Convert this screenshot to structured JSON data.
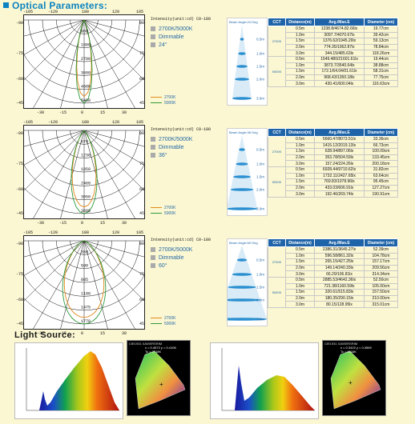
{
  "header": {
    "title": "Optical Parameters:"
  },
  "polar_axes": {
    "top": [
      "-105",
      "-120",
      "180",
      "120",
      "105"
    ],
    "side_left": [
      "-90",
      "-75",
      "-60",
      "-45"
    ],
    "side_right": [
      "90",
      "75",
      "60",
      "45"
    ],
    "bottom": [
      "-30",
      "-15",
      "0",
      "15",
      "30"
    ]
  },
  "charts": [
    {
      "intensity_label": "Intensity(unit:cd) C0-180",
      "specs": [
        "2700K/5000K",
        "Dimmable",
        "24°"
      ],
      "legend": [
        "2700K",
        "5000K"
      ],
      "radial_values": [
        "900",
        "1800",
        "2700",
        "3600",
        "4500",
        "5400"
      ],
      "cone_angle": "Beam Angle:24 Deg",
      "table": {
        "headers": [
          "CCT",
          "Distance(m)",
          "Avg./Max.E",
          "Diameter (cm)"
        ],
        "groups": [
          {
            "cct": "2700K",
            "rows": [
              [
                "0.5m",
                "1238.8/4674.82.66lx",
                "19.77cm"
              ],
              [
                "1.0m",
                "3097.7/4070.67lx",
                "39.42cm"
              ],
              [
                "1.5m",
                "1376.62/1945.29lx",
                "59.13cm"
              ],
              [
                "2.0m",
                "774.35/1062.87lx",
                "78.84cm"
              ],
              [
                "3.0m",
                "344.15/485.63lx",
                "118.26cm"
              ]
            ]
          },
          {
            "cct": "5000K",
            "rows": [
              [
                "0.5m",
                "1549.480/21601.61lx",
                "19.44cm"
              ],
              [
                "1.0m",
                "3873.7/3540.64lx",
                "38.88cm"
              ],
              [
                "1.5m",
                "172.1/64.04/01.61lx",
                "58.31cm"
              ],
              [
                "2.0m",
                "968.43/1350.18lx",
                "77.75cm"
              ],
              [
                "3.0m",
                "430.41/600.04lx",
                "116.63cm"
              ]
            ]
          }
        ]
      },
      "cone_distances": [
        "0.5m",
        "1.0m",
        "1.5m",
        "2.0m",
        "3.0m"
      ]
    },
    {
      "intensity_label": "Intensity(unit:cd) C0-180",
      "specs": [
        "2700K/5000K",
        "Dimmable",
        "36°"
      ],
      "legend": [
        "2700K",
        "5000K"
      ],
      "radial_values": [
        "670",
        "1230",
        "1850",
        "2460",
        "3050",
        "3680"
      ],
      "cone_angle": "Beam Angle:36 Deg",
      "table": {
        "headers": [
          "CCT",
          "Distance(m)",
          "Avg./Max.E",
          "Diameter (cm)"
        ],
        "groups": [
          {
            "cct": "2700K",
            "rows": [
              [
                "0.5m",
                "5660.47/8073.51lx",
                "33.36cm"
              ],
              [
                "1.0m",
                "1415.12/2019.13lx",
                "66.73cm"
              ],
              [
                "1.5m",
                "628.94/897.06lx",
                "100.09cm"
              ],
              [
                "2.0m",
                "353.78/504.59lx",
                "133.45cm"
              ],
              [
                "3.0m",
                "157.24/224.26lx",
                "200.18cm"
              ]
            ]
          },
          {
            "cct": "5000K",
            "rows": [
              [
                "0.5m",
                "6928.44/9710.62lx",
                "31.82cm"
              ],
              [
                "1.0m",
                "1732.11/2427.65lx",
                "63.64cm"
              ],
              [
                "1.5m",
                "769.83/1078.96lx",
                "95.45cm"
              ],
              [
                "2.0m",
                "433.03/606.91lx",
                "127.27cm"
              ],
              [
                "3.0m",
                "192.46/269.74lx",
                "190.91cm"
              ]
            ]
          }
        ]
      },
      "cone_distances": [
        "0.5m",
        "1.0m",
        "1.5m",
        "2.0m",
        "3.0m"
      ]
    },
    {
      "intensity_label": "Intensity(unit:cd) C0-180",
      "specs": [
        "2700K/5000K",
        "Dimmable",
        "60°"
      ],
      "legend": [
        "2700K",
        "5000K"
      ],
      "radial_values": [
        "350",
        "590",
        "885",
        "1180",
        "1475",
        "1770"
      ],
      "cone_angle": "Beam Angle:60 Deg",
      "table": {
        "headers": [
          "CCT",
          "Distance(m)",
          "Avg./Max.E",
          "Diameter (cm)"
        ],
        "groups": [
          {
            "cct": "2700K",
            "rows": [
              [
                "0.5m",
                "2386.31/3645.27lx",
                "52.39cm"
              ],
              [
                "1.0m",
                "596.58/861.32lx",
                "104.78cm"
              ],
              [
                "1.5m",
                "265.15/427.25lx",
                "157.17cm"
              ],
              [
                "2.0m",
                "149.14/240.33lx",
                "209.56cm"
              ],
              [
                "3.0m",
                "66.29/106.81lx",
                "314.34cm"
              ]
            ]
          },
          {
            "cct": "5000K",
            "rows": [
              [
                "0.5m",
                "2885.53/4642.36lx",
                "52.50cm"
              ],
              [
                "1.0m",
                "721.38/1160.59lx",
                "105.00cm"
              ],
              [
                "1.5m",
                "320.61/515.83lx",
                "157.50cm"
              ],
              [
                "2.0m",
                "180.35/290.15lx",
                "210.00cm"
              ],
              [
                "3.0m",
                "80.15/128.95lx",
                "315.01cm"
              ]
            ]
          }
        ]
      },
      "cone_distances": [
        "0.5m",
        "1.0m",
        "1.5m",
        "2.0m",
        "3.0m"
      ]
    }
  ],
  "light_source": {
    "title": "Light Source:",
    "cie": [
      {
        "header": "CIE1931 XAVIERSRIM",
        "values": "x = 0.4572 y = 0.4106\nTc = 2718K"
      },
      {
        "header": "CIE1931 XAVIERSRIM",
        "values": "x = 0.3422 y = 0.3569\nTc = 5116K"
      }
    ]
  },
  "colors": {
    "blue": "#0b83c1",
    "header": "#1f64a8",
    "c2700": "#e08a1c",
    "c5000": "#2e9a3a"
  }
}
